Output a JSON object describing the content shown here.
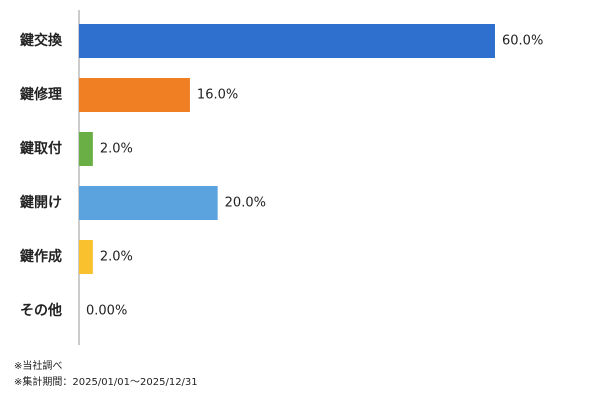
{
  "chart_data": {
    "type": "bar",
    "orientation": "horizontal",
    "categories": [
      "鍵交換",
      "鍵修理",
      "鍵取付",
      "鍵開け",
      "鍵作成",
      "その他"
    ],
    "values": [
      60,
      16,
      2,
      20,
      2,
      0
    ],
    "value_labels": [
      "60.0%",
      "16.0%",
      "2.0%",
      "20.0%",
      "2.0%",
      "0.00%"
    ],
    "colors": [
      "#2f6fcd",
      "#f07e22",
      "#6aaf45",
      "#5ba3df",
      "#f8c12d",
      "#999999"
    ],
    "notes": [
      "※当社調べ",
      "※集計期間：2025/01/01～2025/12/31"
    ]
  }
}
